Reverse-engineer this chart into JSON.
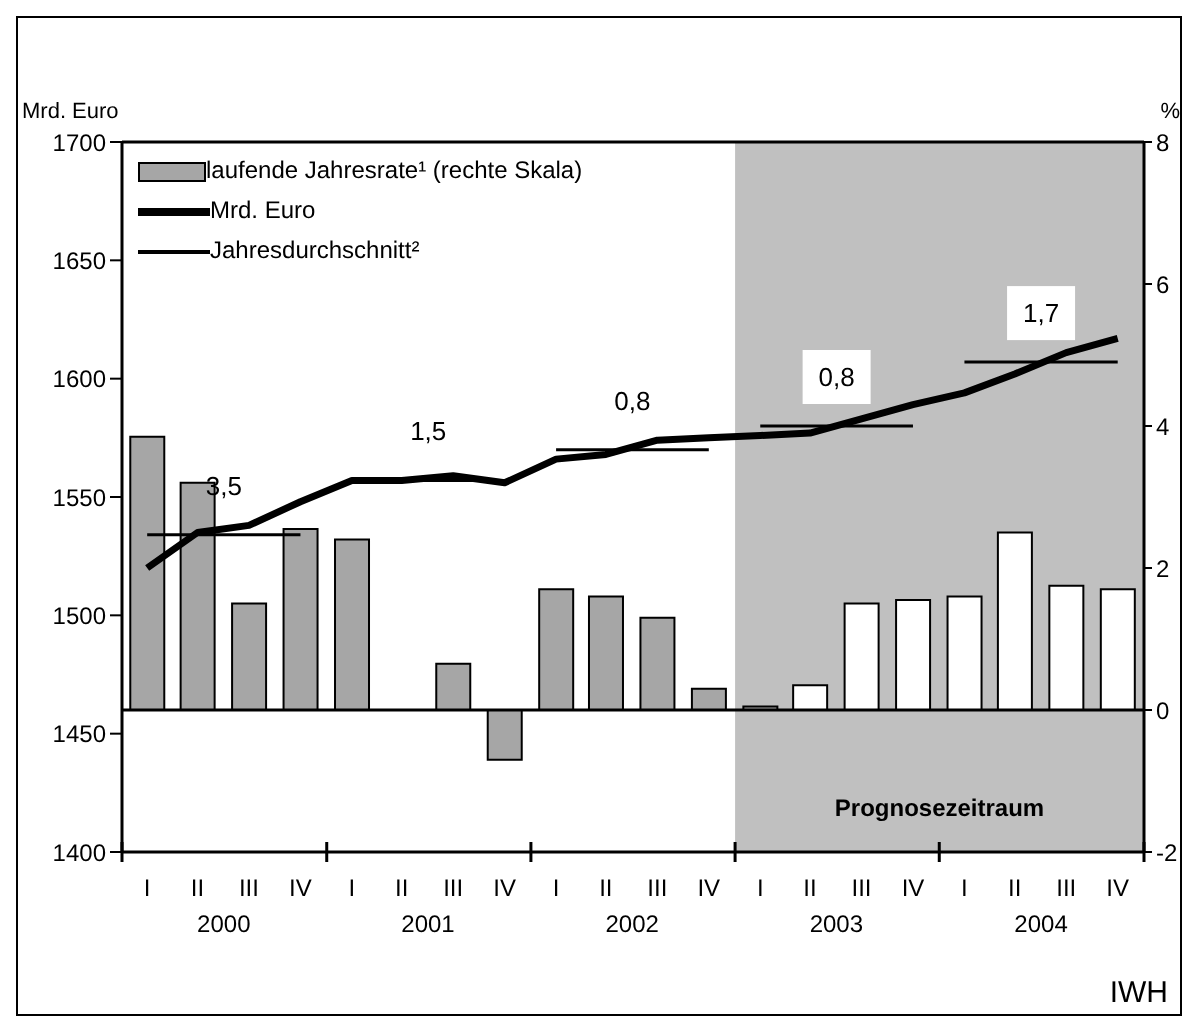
{
  "chart_data": {
    "type": "bar",
    "ylabel": "Mrd. Euro",
    "y2label": "%",
    "x": [
      "2000-02-15",
      "2000-05-15",
      "2000-08-15",
      "2000-11-15",
      "2001-02-15",
      "2001-05-15",
      "2001-08-15",
      "2001-11-15",
      "2002-02-15",
      "2002-05-15",
      "2002-08-15",
      "2002-11-15",
      "2003-02-15",
      "2003-05-15",
      "2003-08-15",
      "2003-11-15",
      "2004-02-15",
      "2004-05-15",
      "2004-08-15",
      "2004-11-15"
    ],
    "series": [
      {
        "name": "laufende Jahresrate¹ (rechte Skala)",
        "axis": "y2",
        "colors": [
          "#a6a6a6",
          "#a6a6a6",
          "#a6a6a6",
          "#a6a6a6",
          "#a6a6a6",
          "#a6a6a6",
          "#a6a6a6",
          "#a6a6a6",
          "#a6a6a6",
          "#a6a6a6",
          "#a6a6a6",
          "#a6a6a6",
          "#a6a6a6",
          "#ffffff",
          "#ffffff",
          "#ffffff",
          "#ffffff",
          "#ffffff",
          "#ffffff",
          "#ffffff"
        ],
        "values": [
          3.85,
          3.2,
          1.5,
          2.55,
          2.4,
          0,
          0.65,
          -0.7,
          1.7,
          1.6,
          1.3,
          0.3,
          0.05,
          0.35,
          1.5,
          1.55,
          1.6,
          2.5,
          1.75,
          1.7
        ]
      },
      {
        "name": "Mrd. Euro",
        "type": "line",
        "color": "#000000",
        "values": [
          1520,
          1535,
          1538,
          1548,
          1557,
          1557,
          1559,
          1556,
          1566,
          1568,
          1574,
          1575,
          1576,
          1577,
          1583,
          1589,
          1594,
          1602,
          1611,
          1617
        ]
      },
      {
        "name": "Jahresdurchschnitt²",
        "type": "step",
        "color": "#000000",
        "values": [
          1534,
          1534,
          1534,
          1534,
          1557,
          1557,
          1557,
          1557,
          1570,
          1570,
          1570,
          1570,
          1580,
          1580,
          1580,
          1580,
          1607,
          1607,
          1607,
          1607
        ]
      }
    ],
    "xlim": [
      "2000-01-01",
      "2005-01-01"
    ],
    "xticks": [
      {
        "value": "2000-01-01",
        "label": null
      },
      {
        "value": "2001-01-01",
        "label": null
      },
      {
        "value": "2002-01-01",
        "label": null
      },
      {
        "value": "2003-01-01",
        "label": null
      },
      {
        "value": "2004-01-01",
        "label": null
      },
      {
        "value": "2005-01-01",
        "label": null
      },
      {
        "value": "2000-07-01",
        "label": "2000"
      },
      {
        "value": "2001-07-01",
        "label": "2001"
      },
      {
        "value": "2002-07-01",
        "label": "2002"
      },
      {
        "value": "2003-07-01",
        "label": "2003"
      },
      {
        "value": "2004-07-01",
        "label": "2004"
      }
    ],
    "ylim": [
      1400,
      1700
    ],
    "yticks": [
      1400,
      1450,
      1500,
      1550,
      1600,
      1650,
      1700
    ],
    "y2lim": [
      -2,
      8
    ],
    "y2ticks": [
      -2,
      0,
      2,
      4,
      6,
      8
    ],
    "ref_lines": [
      {
        "axis": "y2",
        "value": 0,
        "color": "#000000"
      }
    ],
    "bands": [
      {
        "axis": "x",
        "from": "2003-01-01",
        "to": "2005-01-01",
        "label": "Prognosezeitraum",
        "color": "#c0c0c0"
      }
    ],
    "annotations": [
      "I",
      "II",
      "III",
      "IV",
      "I",
      "II",
      "III",
      "IV",
      "I",
      "II",
      "III",
      "IV",
      "I",
      "II",
      "III",
      "IV",
      "I",
      "II",
      "III",
      "IV",
      "3,5",
      "1,5",
      "0,8",
      "0,8",
      "1,7",
      "IWH"
    ],
    "legend": "top left",
    "marker": "none",
    "line_style": "solid"
  }
}
